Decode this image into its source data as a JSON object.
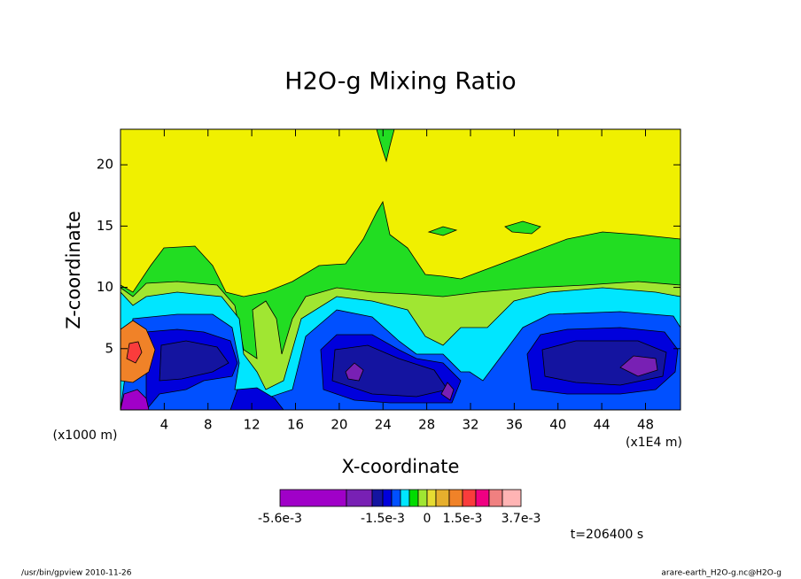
{
  "chart_data": {
    "type": "contour",
    "title": "H2O-g Mixing Ratio",
    "x_label": "X-coordinate",
    "y_label": "Z-coordinate",
    "x_unit": "(x1E4 m)",
    "y_unit": "(x1000 m)",
    "xlim": [
      0,
      51.2
    ],
    "xticks": [
      4,
      8,
      12,
      16,
      20,
      24,
      28,
      32,
      36,
      40,
      44,
      48
    ],
    "ylim": [
      0,
      22.9
    ],
    "yticks": [
      5,
      10,
      15,
      20
    ],
    "colorbar": {
      "colors": [
        "#a000c8",
        "#7820b4",
        "#1414a0",
        "#0000dc",
        "#0050ff",
        "#00e6ff",
        "#00dc00",
        "#a0e632",
        "#e6dc32",
        "#e6af2d",
        "#f08228",
        "#fa3c3c",
        "#f00082",
        "#f08080",
        "#ffb4b4"
      ],
      "ticks": [
        {
          "value": -0.0056,
          "label": "-5.6e-3"
        },
        {
          "value": -0.0015,
          "label": "-1.5e-3"
        },
        0,
        {
          "value": 0.0015,
          "label": "1.5e-3"
        },
        {
          "value": 0.0037,
          "label": "3.7e-3"
        }
      ]
    },
    "time_label": "t=206400 s",
    "footer_left": "/usr/bin/gpview  2010-11-26",
    "footer_right": "arare-earth_H2O-g.nc@H2O-g"
  }
}
